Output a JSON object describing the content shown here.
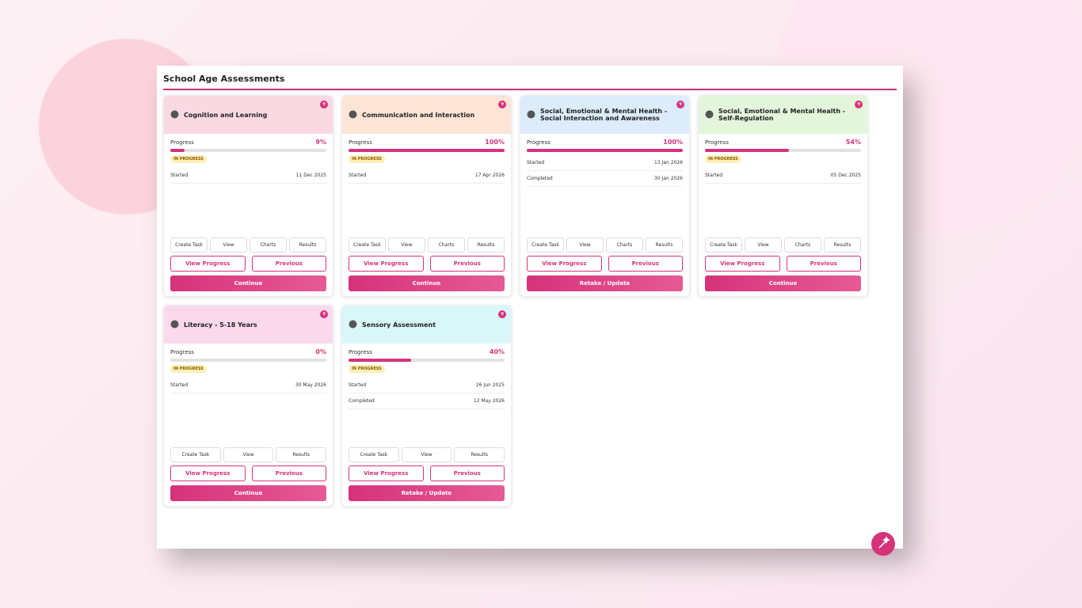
{
  "header": {
    "title": "School Age Assessments"
  },
  "cards": [
    {
      "title": "Cognition and Learning",
      "color": "#fbd9e2",
      "progress_label": "Progress",
      "progress": {
        "value": 9,
        "label": "9%"
      },
      "status": "IN PROGRESS",
      "dates": [
        {
          "label": "Started",
          "value": "11 Dec 2025"
        }
      ],
      "tools": [
        "Create Task",
        "View",
        "Charts",
        "Results"
      ],
      "buttons": [
        "View Progress",
        "Previous"
      ],
      "action": "Continue"
    },
    {
      "title": "Communication and Interaction",
      "color": "#fde4d6",
      "progress_label": "Progress",
      "progress": {
        "value": 100,
        "label": "100%"
      },
      "status": "IN PROGRESS",
      "dates": [
        {
          "label": "Started",
          "value": "17 Apr 2026"
        }
      ],
      "tools": [
        "Create Task",
        "View",
        "Charts",
        "Results"
      ],
      "buttons": [
        "View Progress",
        "Previous"
      ],
      "action": "Continue"
    },
    {
      "title": "Social, Emotional & Mental Health - Social Interaction and Awareness",
      "color": "#dcecfb",
      "progress_label": "Progress",
      "progress": {
        "value": 100,
        "label": "100%"
      },
      "dates": [
        {
          "label": "Started",
          "value": "13 Jan 2026"
        },
        {
          "label": "Completed",
          "value": "30 Jan 2026"
        }
      ],
      "tools": [
        "Create Task",
        "View",
        "Charts",
        "Results"
      ],
      "buttons": [
        "View Progress",
        "Previous"
      ],
      "action": "Retake / Update"
    },
    {
      "title": "Social, Emotional & Mental Health - Self-Regulation",
      "color": "#e3f6dc",
      "progress_label": "Progress",
      "progress": {
        "value": 54,
        "label": "54%"
      },
      "status": "IN PROGRESS",
      "dates": [
        {
          "label": "Started",
          "value": "05 Dec 2025"
        }
      ],
      "tools": [
        "Create Task",
        "View",
        "Charts",
        "Results"
      ],
      "buttons": [
        "View Progress",
        "Previous"
      ],
      "action": "Continue"
    },
    {
      "title": "Literacy - 5-18 Years",
      "color": "#fbd9ec",
      "progress_label": "Progress",
      "progress": {
        "value": 0,
        "label": "0%"
      },
      "status": "IN PROGRESS",
      "dates": [
        {
          "label": "Started",
          "value": "30 May 2026"
        }
      ],
      "tools": [
        "Create Task",
        "View",
        "Results"
      ],
      "buttons": [
        "View Progress",
        "Previous"
      ],
      "action": "Continue"
    },
    {
      "title": "Sensory Assessment",
      "color": "#d9f7f8",
      "progress_label": "Progress",
      "progress": {
        "value": 40,
        "label": "40%"
      },
      "status": "IN PROGRESS",
      "dates": [
        {
          "label": "Started",
          "value": "26 Jun 2025"
        },
        {
          "label": "Completed",
          "value": "12 May 2026"
        }
      ],
      "tools": [
        "Create Task",
        "View",
        "Results"
      ],
      "buttons": [
        "View Progress",
        "Previous"
      ],
      "action": "Retake / Update"
    }
  ]
}
